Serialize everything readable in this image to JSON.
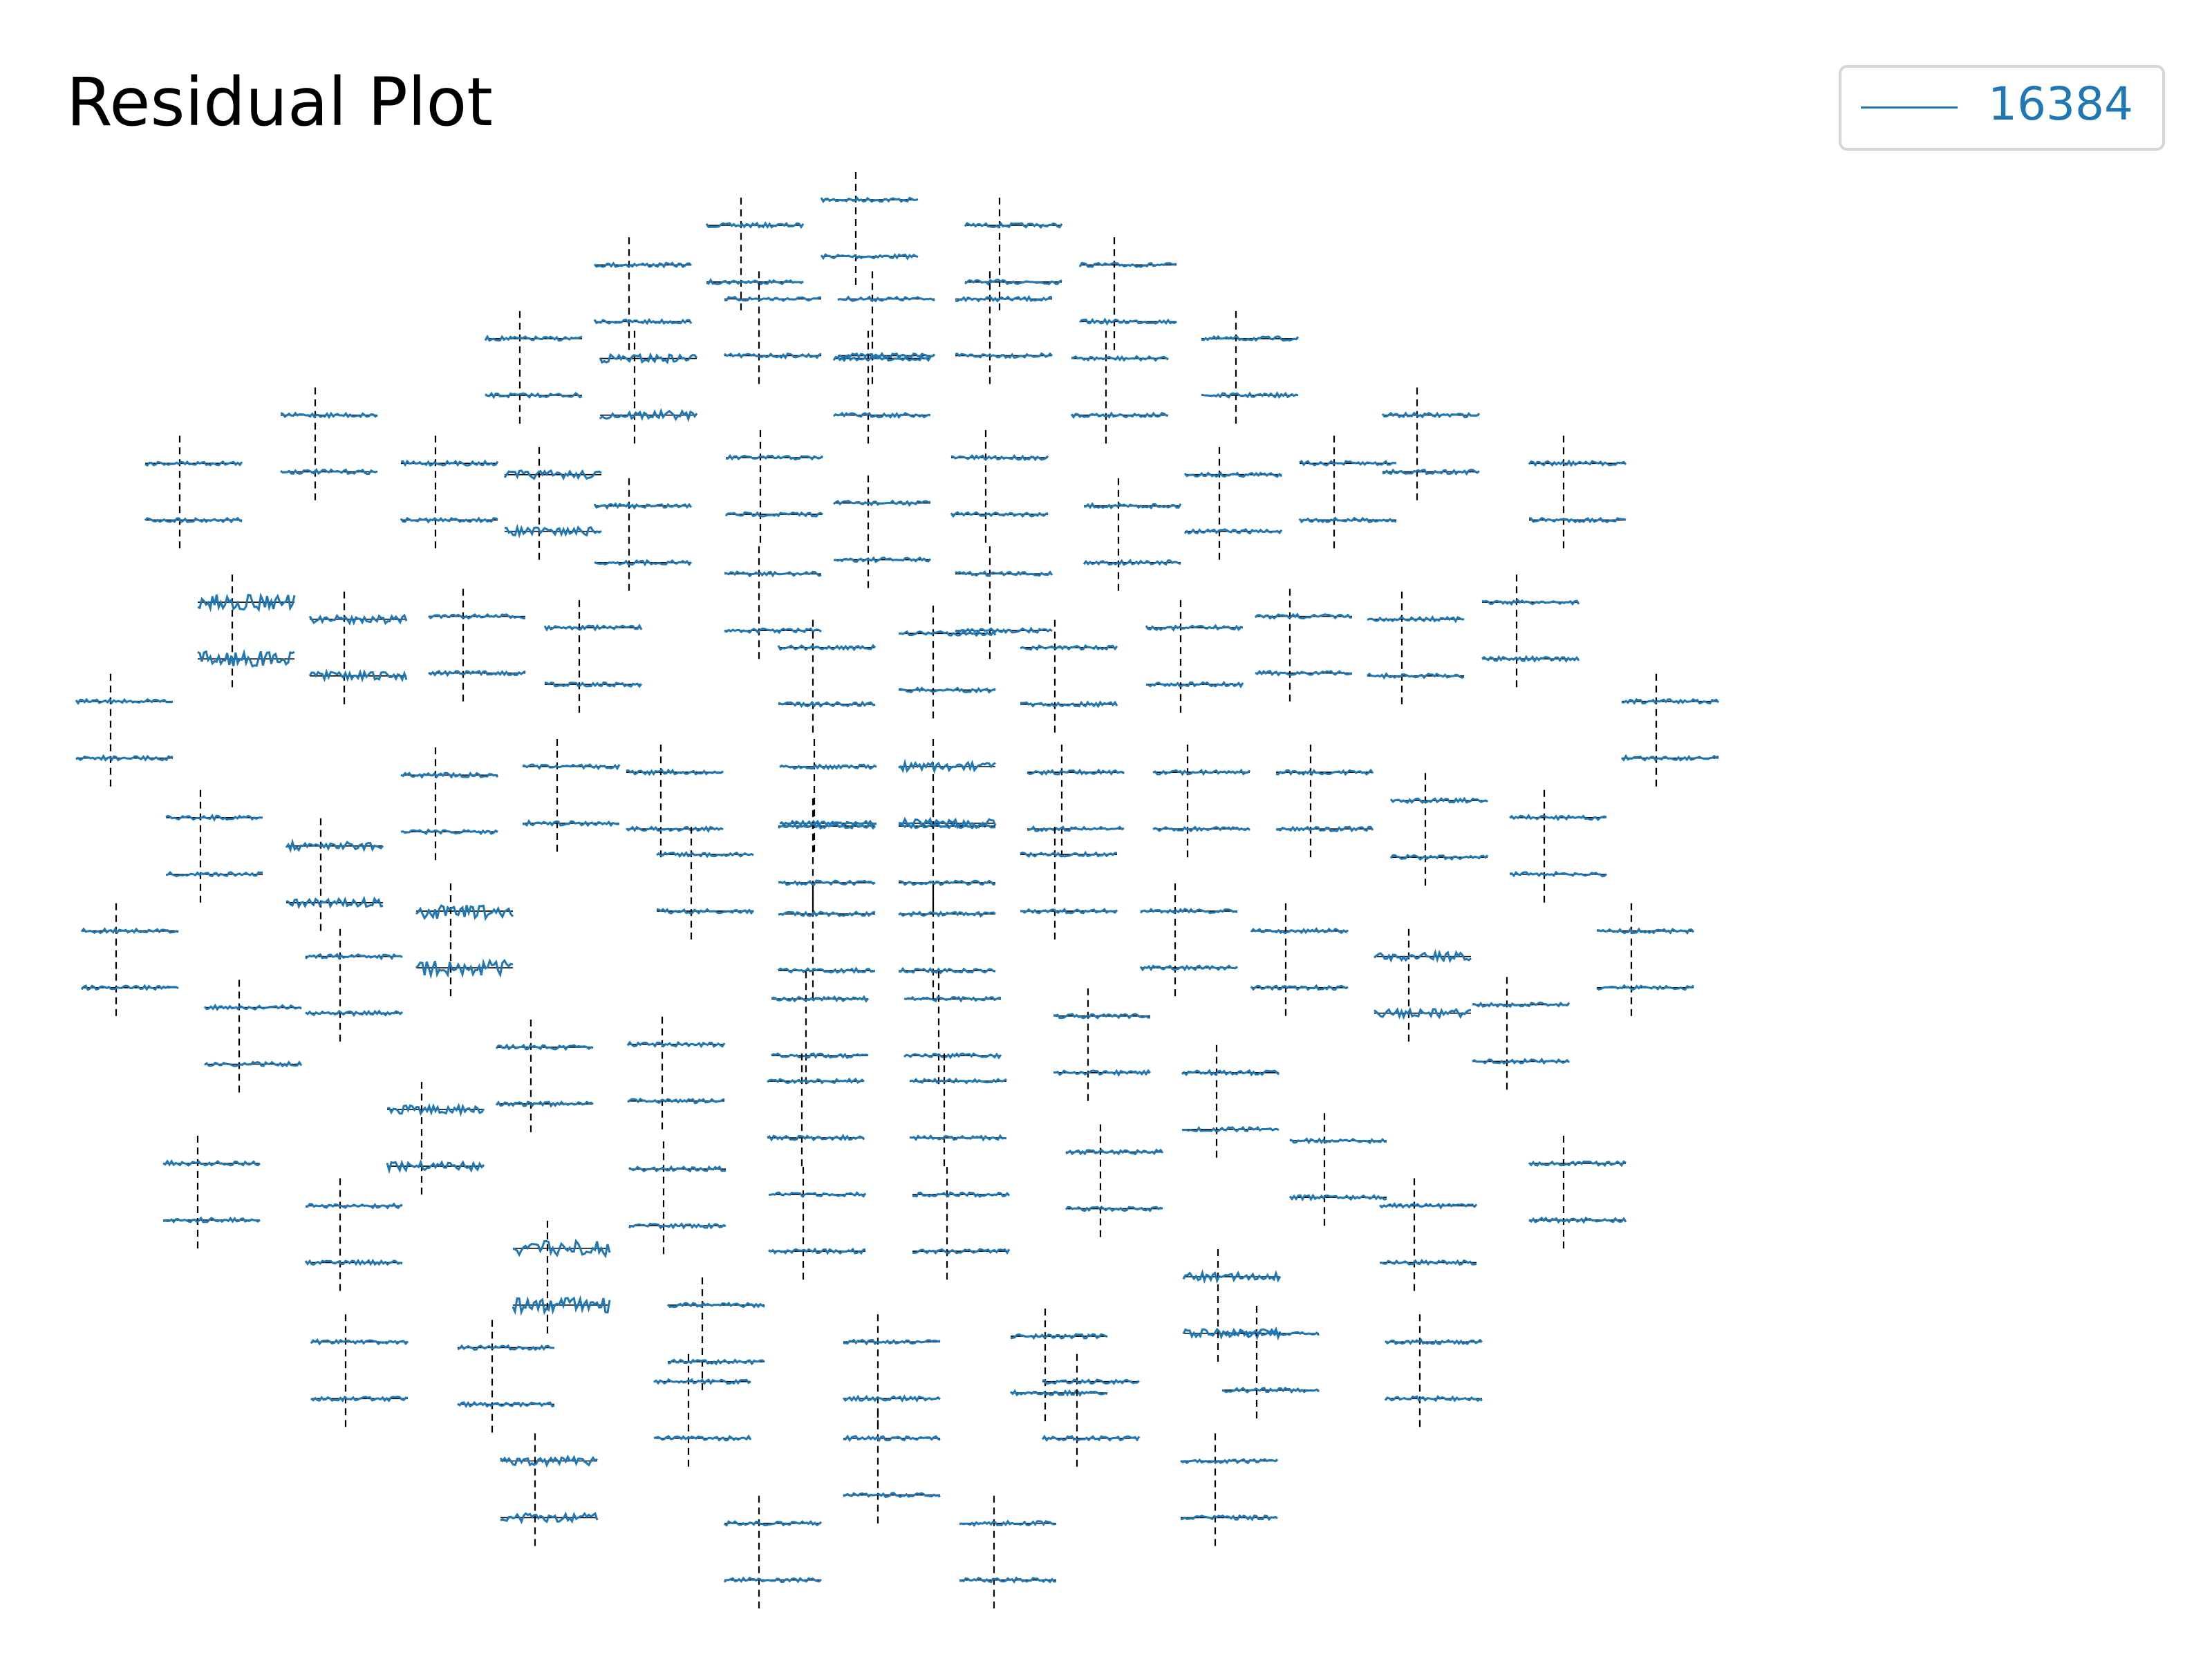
{
  "chart_data": {
    "type": "line",
    "title": "Residual Plot",
    "legend": {
      "placement": "top-right",
      "entries": [
        "16384"
      ]
    },
    "series": [
      {
        "name": "16384",
        "color": "#1f77b4"
      }
    ],
    "marker_line_style": "dashed",
    "marker_color": "#000000",
    "panels": {
      "layout": "sensor-topography",
      "count": 172,
      "traces_per_panel": 2,
      "rows": [
        {
          "y": 140,
          "x": [
            1258
          ]
        },
        {
          "y": 158,
          "x": [
            1092,
            1466
          ]
        },
        {
          "y": 186,
          "x": [
            930,
            1632
          ]
        },
        {
          "y": 210,
          "x": [
            1118,
            1282,
            1452
          ]
        },
        {
          "y": 238,
          "x": [
            772,
            1808
          ]
        },
        {
          "y": 252,
          "x": [
            938,
            1276,
            1620
          ]
        },
        {
          "y": 292,
          "x": [
            476,
            2070
          ]
        },
        {
          "y": 322,
          "x": [
            1120,
            1446
          ]
        },
        {
          "y": 326,
          "x": [
            280,
            650,
            1950,
            2282
          ]
        },
        {
          "y": 334,
          "x": [
            800,
            1784
          ]
        },
        {
          "y": 354,
          "x": [
            1276
          ]
        },
        {
          "y": 356,
          "x": [
            930,
            1638
          ]
        },
        {
          "y": 404,
          "x": [
            1118,
            1452
          ]
        },
        {
          "y": 424,
          "x": [
            356,
            2214
          ]
        },
        {
          "y": 434,
          "x": [
            690,
            1886
          ]
        },
        {
          "y": 436,
          "x": [
            518,
            2048
          ]
        },
        {
          "y": 442,
          "x": [
            858,
            1728
          ]
        },
        {
          "y": 446,
          "x": [
            1370
          ]
        },
        {
          "y": 456,
          "x": [
            1196,
            1546
          ]
        },
        {
          "y": 494,
          "x": [
            180,
            2416
          ]
        },
        {
          "y": 540,
          "x": [
            826,
            1198,
            1370
          ]
        },
        {
          "y": 544,
          "x": [
            976,
            1556,
            1738,
            1916
          ]
        },
        {
          "y": 546,
          "x": [
            650
          ]
        },
        {
          "y": 564,
          "x": [
            2082
          ]
        },
        {
          "y": 576,
          "x": [
            310,
            2254
          ]
        },
        {
          "y": 582,
          "x": [
            1196,
            1370
          ]
        },
        {
          "y": 596,
          "x": [
            484
          ]
        },
        {
          "y": 602,
          "x": [
            1020,
            1546
          ]
        },
        {
          "y": 642,
          "x": [
            672,
            1720
          ]
        },
        {
          "y": 644,
          "x": [
            1196,
            1370
          ]
        },
        {
          "y": 656,
          "x": [
            188,
            1880,
            2380
          ]
        },
        {
          "y": 674,
          "x": [
            512,
            2058
          ]
        },
        {
          "y": 704,
          "x": [
            1186,
            1378
          ]
        },
        {
          "y": 708,
          "x": [
            2200
          ]
        },
        {
          "y": 710,
          "x": [
            366
          ]
        },
        {
          "y": 716,
          "x": [
            1594
          ]
        },
        {
          "y": 736,
          "x": [
            978
          ]
        },
        {
          "y": 738,
          "x": [
            788
          ]
        },
        {
          "y": 756,
          "x": [
            1780
          ]
        },
        {
          "y": 762,
          "x": [
            1180,
            1386
          ]
        },
        {
          "y": 782,
          "x": [
            630
          ]
        },
        {
          "y": 804,
          "x": [
            1936
          ]
        },
        {
          "y": 812,
          "x": [
            1612
          ]
        },
        {
          "y": 820,
          "x": [
            306,
            2282
          ]
        },
        {
          "y": 824,
          "x": [
            980
          ]
        },
        {
          "y": 842,
          "x": [
            1182,
            1390
          ]
        },
        {
          "y": 850,
          "x": [
            512,
            2066
          ]
        },
        {
          "y": 880,
          "x": [
            812
          ]
        },
        {
          "y": 900,
          "x": [
            1782
          ]
        },
        {
          "y": 920,
          "x": [
            1036
          ]
        },
        {
          "y": 940,
          "x": [
            1838
          ]
        },
        {
          "y": 946,
          "x": [
            520,
            1290,
            2074
          ]
        },
        {
          "y": 942,
          "x": [
            1532
          ]
        },
        {
          "y": 950,
          "x": [
            732
          ]
        },
        {
          "y": 974,
          "x": [
            1016,
            1578
          ]
        },
        {
          "y": 1014,
          "x": [
            1290
          ]
        },
        {
          "y": 1030,
          "x": [
            794,
            1778
          ]
        },
        {
          "y": 1074,
          "x": [
            1118,
            1458
          ]
        }
      ]
    },
    "xlabel": "",
    "ylabel": ""
  }
}
